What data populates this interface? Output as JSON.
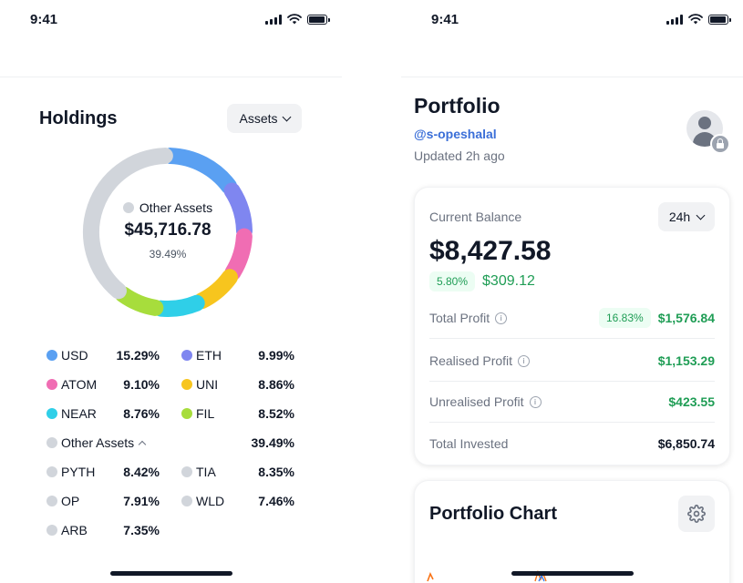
{
  "status_bar": {
    "time": "9:41"
  },
  "holdings": {
    "title": "Holdings",
    "filter_label": "Assets",
    "center": {
      "label": "Other Assets",
      "value": "$45,716.78",
      "percent": "39.49%"
    },
    "donut": [
      {
        "name": "USD",
        "fraction": 0.1529,
        "color": "#5aa0f2"
      },
      {
        "name": "ETH",
        "fraction": 0.0999,
        "color": "#7f86f0"
      },
      {
        "name": "ATOM",
        "fraction": 0.091,
        "color": "#f06db3"
      },
      {
        "name": "UNI",
        "fraction": 0.0886,
        "color": "#f7c51e"
      },
      {
        "name": "NEAR",
        "fraction": 0.0876,
        "color": "#2fcfe8"
      },
      {
        "name": "FIL",
        "fraction": 0.0852,
        "color": "#a7dd3c"
      },
      {
        "name": "Other Assets",
        "fraction": 0.3949,
        "color": "#d1d5db"
      }
    ],
    "legend": {
      "usd": {
        "label": "USD",
        "pct": "15.29%",
        "color": "#5aa0f2"
      },
      "eth": {
        "label": "ETH",
        "pct": "9.99%",
        "color": "#7f86f0"
      },
      "atom": {
        "label": "ATOM",
        "pct": "9.10%",
        "color": "#f06db3"
      },
      "uni": {
        "label": "UNI",
        "pct": "8.86%",
        "color": "#f7c51e"
      },
      "near": {
        "label": "NEAR",
        "pct": "8.76%",
        "color": "#2fcfe8"
      },
      "fil": {
        "label": "FIL",
        "pct": "8.52%",
        "color": "#a7dd3c"
      },
      "other": {
        "label": "Other Assets",
        "pct": "39.49%",
        "color": "#d1d5db"
      },
      "pyth": {
        "label": "PYTH",
        "pct": "8.42%"
      },
      "tia": {
        "label": "TIA",
        "pct": "8.35%"
      },
      "op": {
        "label": "OP",
        "pct": "7.91%"
      },
      "wld": {
        "label": "WLD",
        "pct": "7.46%"
      },
      "arb": {
        "label": "ARB",
        "pct": "7.35%"
      }
    }
  },
  "portfolio": {
    "title": "Portfolio",
    "username": "@s-opeshalal",
    "updated": "Updated 2h ago",
    "balance_label": "Current Balance",
    "range": "24h",
    "balance": "$8,427.58",
    "change_pct": "5.80%",
    "change_value": "$309.12",
    "stats": {
      "total_profit": {
        "label": "Total Profit",
        "pct": "16.83%",
        "value": "$1,576.84"
      },
      "realised": {
        "label": "Realised Profit",
        "value": "$1,153.29"
      },
      "unrealised": {
        "label": "Unrealised Profit",
        "value": "$423.55"
      },
      "invested": {
        "label": "Total Invested",
        "value": "$6,850.74"
      }
    },
    "chart_title": "Portfolio Chart"
  }
}
